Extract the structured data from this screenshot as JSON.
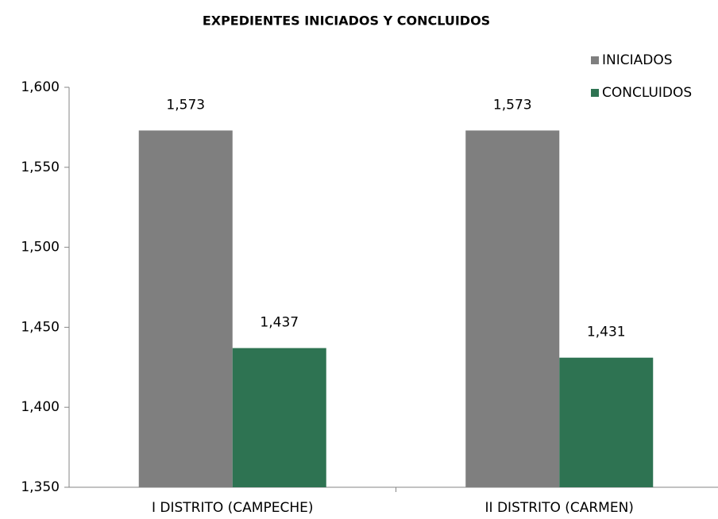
{
  "chart_data": {
    "type": "bar",
    "title": "EXPEDIENTES INICIADOS Y CONCLUIDOS",
    "categories": [
      "I DISTRITO (CAMPECHE)",
      "II DISTRITO (CARMEN)"
    ],
    "series": [
      {
        "name": "INICIADOS",
        "color": "#7f7f7f",
        "values": [
          1573,
          1573
        ],
        "value_labels": [
          "1,573",
          "1,573"
        ]
      },
      {
        "name": "CONCLUIDOS",
        "color": "#2e7352",
        "values": [
          1437,
          1431
        ],
        "value_labels": [
          "1,437",
          "1,431"
        ]
      }
    ],
    "ylim": [
      1350,
      1600
    ],
    "yticks": [
      {
        "value": 1350,
        "label": "1,350"
      },
      {
        "value": 1400,
        "label": "1,400"
      },
      {
        "value": 1450,
        "label": "1,450"
      },
      {
        "value": 1500,
        "label": "1,500"
      },
      {
        "value": 1550,
        "label": "1,550"
      },
      {
        "value": 1600,
        "label": "1,600"
      }
    ],
    "grid": false,
    "legend": "top-right"
  }
}
